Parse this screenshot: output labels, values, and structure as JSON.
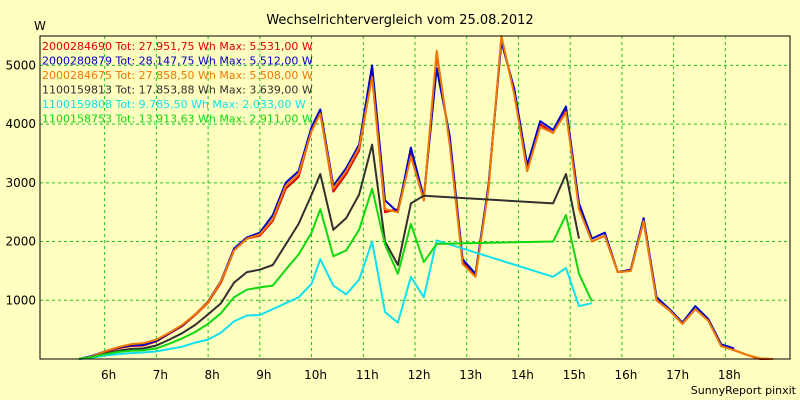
{
  "chart_data": {
    "type": "line",
    "title": "Wechselrichtervergleich vom 25.08.2012",
    "ylabel": "W",
    "xlabel": "",
    "footer": "SunnyReport pinxit",
    "xlim": [
      4.75,
      19.25
    ],
    "ylim": [
      0,
      5500
    ],
    "x_ticks": [
      {
        "value": 6,
        "label": "6h"
      },
      {
        "value": 7,
        "label": "7h"
      },
      {
        "value": 8,
        "label": "8h"
      },
      {
        "value": 9,
        "label": "9h"
      },
      {
        "value": 10,
        "label": "10h"
      },
      {
        "value": 11,
        "label": "11h"
      },
      {
        "value": 12,
        "label": "12h"
      },
      {
        "value": 13,
        "label": "13h"
      },
      {
        "value": 14,
        "label": "14h"
      },
      {
        "value": 15,
        "label": "15h"
      },
      {
        "value": 16,
        "label": "16h"
      },
      {
        "value": 17,
        "label": "17h"
      },
      {
        "value": 18,
        "label": "18h"
      }
    ],
    "y_ticks": [
      {
        "value": 1000,
        "label": "1000"
      },
      {
        "value": 2000,
        "label": "2000"
      },
      {
        "value": 3000,
        "label": "3000"
      },
      {
        "value": 4000,
        "label": "4000"
      },
      {
        "value": 5000,
        "label": "5000"
      }
    ],
    "grid": true,
    "legend_position": "top-left",
    "series": [
      {
        "name": "2000284690 Tot: 27.951,75 Wh Max: 5.531,00 W",
        "color": "#e00000",
        "x": [
          5.5,
          5.75,
          6.0,
          6.25,
          6.5,
          6.75,
          7.0,
          7.25,
          7.5,
          7.75,
          8.0,
          8.25,
          8.5,
          8.75,
          9.0,
          9.25,
          9.5,
          9.75,
          10.0,
          10.17,
          10.42,
          10.67,
          10.92,
          11.17,
          11.42,
          11.67,
          11.92,
          12.17,
          12.42,
          12.67,
          12.92,
          13.17,
          13.42,
          13.67,
          13.92,
          14.17,
          14.42,
          14.67,
          14.92,
          15.17,
          15.42,
          15.67,
          15.92,
          16.17,
          16.42,
          16.67,
          16.92,
          17.17,
          17.42,
          17.67,
          17.92,
          18.17,
          18.42,
          18.67,
          18.92
        ],
        "y": [
          0,
          40,
          120,
          180,
          220,
          230,
          300,
          430,
          560,
          750,
          960,
          1300,
          1850,
          2050,
          2100,
          2350,
          2900,
          3100,
          3900,
          4200,
          2850,
          3150,
          3550,
          4850,
          2500,
          2550,
          3500,
          2700,
          5200,
          3700,
          1650,
          1420,
          2900,
          5450,
          4550,
          3200,
          4000,
          3850,
          4250,
          2600,
          2000,
          2100,
          1480,
          1500,
          2350,
          1000,
          830,
          600,
          850,
          670,
          220,
          150,
          70,
          0,
          0
        ]
      },
      {
        "name": "2000280879 Tot: 28.147,75 Wh Max: 5.512,00 W",
        "color": "#0000c8",
        "x": [
          5.5,
          5.75,
          6.0,
          6.25,
          6.5,
          6.75,
          7.0,
          7.25,
          7.5,
          7.75,
          8.0,
          8.25,
          8.5,
          8.75,
          9.0,
          9.25,
          9.5,
          9.75,
          10.0,
          10.17,
          10.42,
          10.67,
          10.92,
          11.17,
          11.42,
          11.67,
          11.92,
          12.17,
          12.42,
          12.67,
          12.92,
          13.17,
          13.42,
          13.67,
          13.92,
          14.17,
          14.42,
          14.67,
          14.92,
          15.17,
          15.42,
          15.67,
          15.92,
          16.17,
          16.42,
          16.67,
          16.92,
          17.17,
          17.42,
          17.67,
          17.92,
          18.17
        ],
        "y": [
          0,
          50,
          130,
          190,
          230,
          240,
          310,
          440,
          570,
          760,
          980,
          1330,
          1880,
          2070,
          2150,
          2450,
          3000,
          3200,
          3950,
          4250,
          2950,
          3250,
          3650,
          5000,
          2700,
          2500,
          3600,
          2750,
          4950,
          3800,
          1700,
          1450,
          2950,
          5400,
          4600,
          3300,
          4050,
          3900,
          4300,
          2650,
          2050,
          2150,
          1480,
          1520,
          2400,
          1050,
          850,
          620,
          900,
          680,
          250,
          180
        ]
      },
      {
        "name": "2000284675 Tot: 27.858,50 Wh Max: 5.508,00 W",
        "color": "#f07800",
        "x": [
          5.5,
          5.75,
          6.0,
          6.25,
          6.5,
          6.75,
          7.0,
          7.25,
          7.5,
          7.75,
          8.0,
          8.25,
          8.5,
          8.75,
          9.0,
          9.25,
          9.5,
          9.75,
          10.0,
          10.17,
          10.42,
          10.67,
          10.92,
          11.17,
          11.42,
          11.67,
          11.92,
          12.17,
          12.42,
          12.67,
          12.92,
          13.17,
          13.42,
          13.67,
          13.92,
          14.17,
          14.42,
          14.67,
          14.92,
          15.17,
          15.42,
          15.67,
          15.92,
          16.17,
          16.42,
          16.67,
          16.92,
          17.17,
          17.42,
          17.67,
          17.92,
          18.17,
          18.42,
          18.67,
          18.92
        ],
        "y": [
          0,
          40,
          130,
          200,
          250,
          270,
          330,
          450,
          580,
          760,
          970,
          1320,
          1850,
          2050,
          2120,
          2380,
          2950,
          3150,
          3880,
          4180,
          2900,
          3200,
          3600,
          4800,
          2550,
          2500,
          3450,
          2700,
          5250,
          3650,
          1620,
          1400,
          2880,
          5500,
          4500,
          3200,
          3950,
          3850,
          4200,
          2550,
          2000,
          2100,
          1480,
          1500,
          2350,
          1000,
          830,
          600,
          850,
          650,
          220,
          150,
          70,
          10,
          0
        ]
      },
      {
        "name": "1100159813 Tot: 17.853,88 Wh Max: 3.639,00 W",
        "color": "#303030",
        "x": [
          5.5,
          5.75,
          6.0,
          6.25,
          6.5,
          6.75,
          7.0,
          7.25,
          7.5,
          7.75,
          8.0,
          8.25,
          8.5,
          8.75,
          9.0,
          9.25,
          9.5,
          9.75,
          10.0,
          10.17,
          10.42,
          10.67,
          10.92,
          11.17,
          11.42,
          11.67,
          11.92,
          12.17,
          14.67,
          14.92,
          15.17
        ],
        "y": [
          0,
          30,
          90,
          140,
          170,
          180,
          230,
          330,
          440,
          580,
          760,
          950,
          1300,
          1480,
          1520,
          1600,
          1950,
          2300,
          2800,
          3150,
          2200,
          2400,
          2800,
          3650,
          2000,
          1600,
          2650,
          2780,
          2650,
          3150,
          2050
        ]
      },
      {
        "name": "1100159808 Tot: 9.785,50 Wh Max: 2.033,00 W",
        "color": "#10e0f0",
        "x": [
          5.5,
          5.75,
          6.0,
          6.25,
          6.5,
          6.75,
          7.0,
          7.25,
          7.5,
          7.75,
          8.0,
          8.25,
          8.5,
          8.75,
          9.0,
          9.25,
          9.5,
          9.75,
          10.0,
          10.17,
          10.42,
          10.67,
          10.92,
          11.17,
          11.42,
          11.67,
          11.92,
          12.17,
          12.42,
          14.67,
          14.92,
          15.17,
          15.42
        ],
        "y": [
          0,
          20,
          60,
          80,
          100,
          110,
          130,
          170,
          210,
          280,
          330,
          450,
          640,
          740,
          750,
          850,
          950,
          1050,
          1280,
          1700,
          1250,
          1100,
          1350,
          2000,
          800,
          620,
          1400,
          1050,
          2020,
          1400,
          1550,
          900,
          950
        ]
      },
      {
        "name": "1100158753 Tot: 13.913,63 Wh Max: 2.911,00 W",
        "color": "#10d810",
        "x": [
          5.5,
          5.75,
          6.0,
          6.25,
          6.5,
          6.75,
          7.0,
          7.25,
          7.5,
          7.75,
          8.0,
          8.25,
          8.5,
          8.75,
          9.0,
          9.25,
          9.5,
          9.75,
          10.0,
          10.17,
          10.42,
          10.67,
          10.92,
          11.17,
          11.42,
          11.67,
          11.92,
          12.17,
          12.42,
          14.67,
          14.92,
          15.17,
          15.42
        ],
        "y": [
          0,
          30,
          80,
          120,
          140,
          150,
          180,
          260,
          350,
          460,
          600,
          780,
          1050,
          1180,
          1220,
          1250,
          1520,
          1780,
          2150,
          2550,
          1750,
          1850,
          2200,
          2900,
          1950,
          1450,
          2300,
          1650,
          1960,
          2000,
          2450,
          1450,
          980
        ]
      }
    ]
  }
}
